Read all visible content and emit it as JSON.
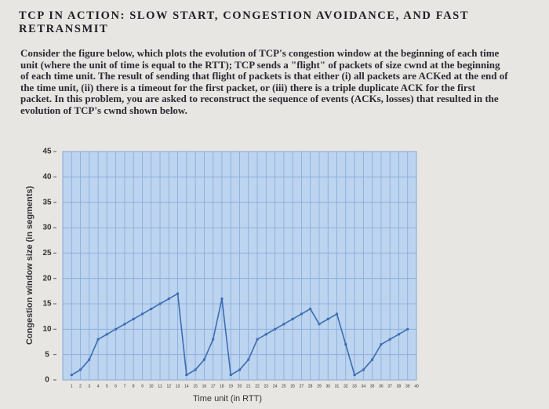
{
  "header": {
    "title": "TCP IN ACTION: SLOW START, CONGESTION AVOIDANCE, AND FAST RETRANSMIT"
  },
  "body": {
    "paragraph": "Consider the figure below, which plots the evolution of TCP's congestion window at the beginning of each time unit (where the unit of time is equal to the RTT); TCP sends a \"flight\" of packets of size cwnd at the beginning of each time unit. The result of sending that flight of packets is that either (i) all packets are ACKed at the end of the time unit, (ii) there is a timeout for the first packet, or (iii) there is a triple duplicate ACK for the first packet. In this problem, you are asked to reconstruct the sequence of events (ACKs, losses) that resulted in the evolution of TCP's cwnd shown below."
  },
  "chart_data": {
    "type": "line",
    "x_label": "Time unit (in RTT)",
    "y_label": "Congestion window size (in segments)",
    "x": [
      1,
      2,
      3,
      4,
      5,
      6,
      7,
      8,
      9,
      10,
      11,
      12,
      13,
      14,
      15,
      16,
      17,
      18,
      19,
      20,
      21,
      22,
      23,
      24,
      25,
      26,
      27,
      28,
      29,
      30,
      31,
      32,
      33,
      34,
      35,
      36,
      37,
      38,
      39,
      40
    ],
    "values": [
      1,
      2,
      4,
      8,
      9,
      10,
      11,
      12,
      13,
      14,
      15,
      16,
      17,
      1,
      2,
      4,
      8,
      16,
      1,
      2,
      4,
      8,
      9,
      10,
      11,
      12,
      13,
      14,
      11,
      12,
      13,
      7,
      1,
      2,
      4,
      7,
      8,
      9,
      10,
      null
    ],
    "color": "#3b6db5",
    "xlim": [
      0,
      40
    ],
    "ylim": [
      0,
      45
    ],
    "yticks": [
      0,
      5,
      10,
      15,
      20,
      25,
      30,
      35,
      40,
      45
    ],
    "grid": true
  }
}
